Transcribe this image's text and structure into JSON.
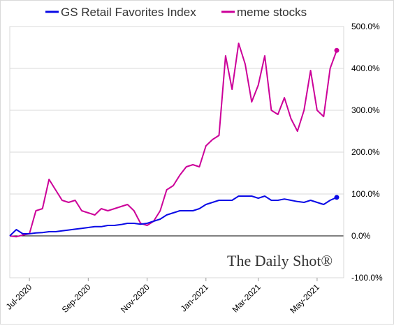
{
  "chart_data": {
    "type": "line",
    "categories": [
      null,
      null,
      null,
      "Jul-2020",
      null,
      null,
      null,
      null,
      null,
      null,
      null,
      null,
      "Sep-2020",
      null,
      null,
      null,
      null,
      null,
      null,
      null,
      null,
      "Nov-2020",
      null,
      null,
      null,
      null,
      null,
      null,
      null,
      null,
      "Jan-2021",
      null,
      null,
      null,
      null,
      null,
      null,
      null,
      "Mar-2021",
      null,
      null,
      null,
      null,
      null,
      null,
      null,
      null,
      "May-2021",
      null,
      null,
      null
    ],
    "series": [
      {
        "name": "GS Retail Favorites Index",
        "color": "#0a0ae6",
        "values": [
          0,
          15,
          5,
          5,
          7,
          8,
          10,
          10,
          12,
          14,
          16,
          18,
          20,
          22,
          22,
          25,
          25,
          27,
          30,
          30,
          28,
          30,
          35,
          40,
          50,
          55,
          60,
          60,
          60,
          65,
          75,
          80,
          85,
          85,
          85,
          95,
          95,
          95,
          90,
          95,
          85,
          85,
          88,
          85,
          82,
          80,
          85,
          80,
          75,
          85,
          92
        ]
      },
      {
        "name": "meme stocks",
        "color": "#cc0099",
        "values": [
          0,
          -2,
          2,
          5,
          60,
          65,
          135,
          110,
          85,
          80,
          85,
          60,
          55,
          50,
          65,
          60,
          65,
          70,
          75,
          60,
          30,
          25,
          35,
          60,
          110,
          120,
          145,
          165,
          170,
          165,
          215,
          230,
          240,
          430,
          350,
          460,
          410,
          320,
          360,
          430,
          300,
          290,
          330,
          280,
          250,
          300,
          395,
          300,
          285,
          400,
          443
        ]
      }
    ],
    "ylim": [
      -100,
      500
    ],
    "yticks": [
      {
        "value": -100,
        "label": "-100.0%"
      },
      {
        "value": 0,
        "label": "0.0%"
      },
      {
        "value": 100,
        "label": "100.0%"
      },
      {
        "value": 200,
        "label": "200.0%"
      },
      {
        "value": 300,
        "label": "300.0%"
      },
      {
        "value": 400,
        "label": "400.0%"
      },
      {
        "value": 500,
        "label": "500.0%"
      }
    ],
    "grid": true,
    "annotations": [
      "The Daily Shot®"
    ]
  }
}
